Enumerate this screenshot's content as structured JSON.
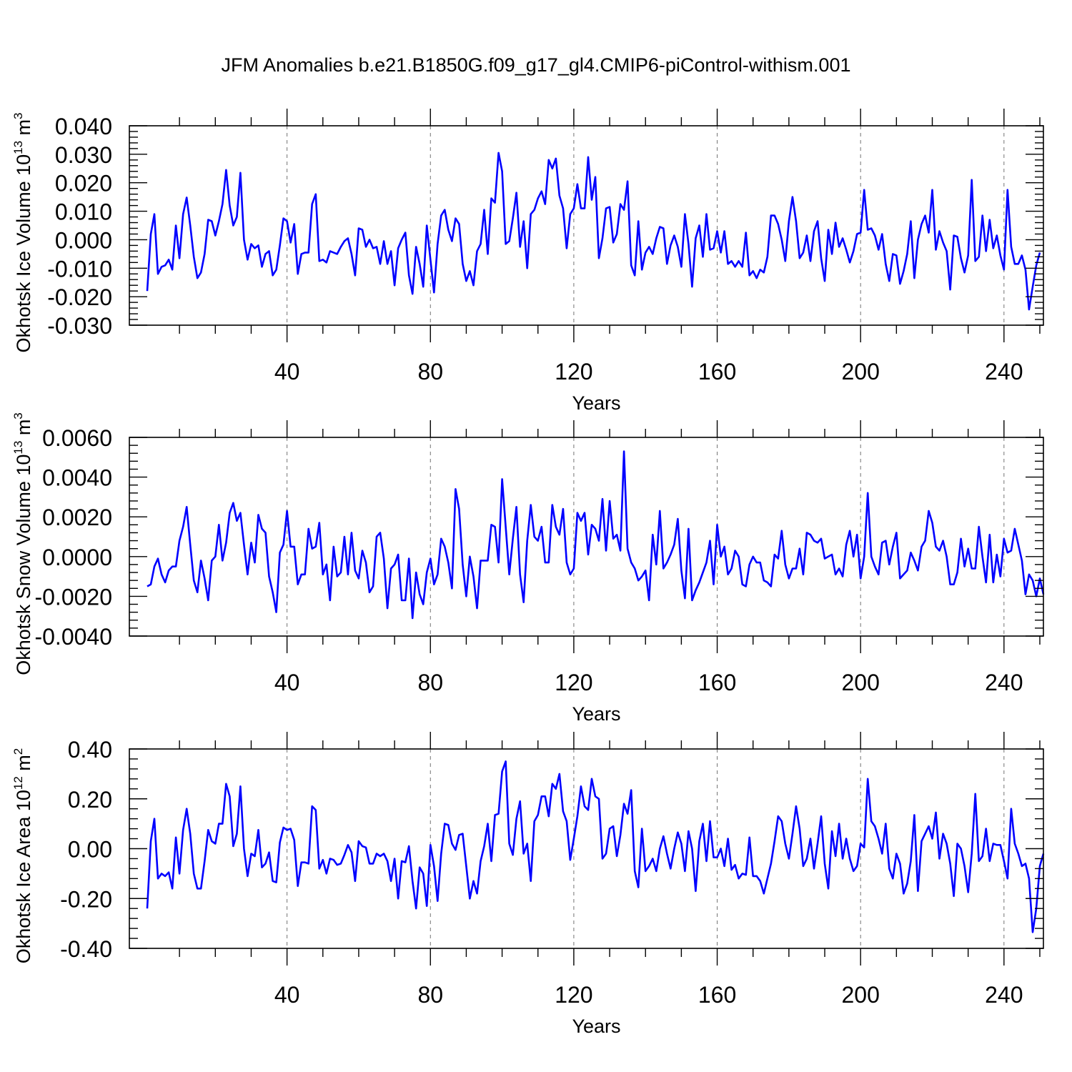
{
  "title": "JFM Anomalies b.e21.B1850G.f09_g17_gl4.CMIP6-piControl-withism.001",
  "chart_data": [
    {
      "type": "line",
      "ylabel": {
        "main": "Okhotsk Ice Volume 10",
        "exp": "13",
        "unit": " m",
        "unit_exp": "3"
      },
      "xlabel": "Years",
      "xlim": [
        1,
        251
      ],
      "ylim": [
        -0.03,
        0.04
      ],
      "xticks": [
        40,
        80,
        120,
        160,
        200,
        240
      ],
      "yticks": [
        -0.03,
        -0.02,
        -0.01,
        0.0,
        0.01,
        0.02,
        0.03,
        0.04
      ],
      "ytick_labels": [
        "-0.030",
        "-0.020",
        "-0.010",
        "0.000",
        "0.010",
        "0.020",
        "0.030",
        "0.040"
      ],
      "grid": "dashed vertical at major x ticks",
      "color": "#0000ff",
      "x_start": 1,
      "values": [
        -0.018,
        0.002,
        0.009,
        -0.012,
        -0.0095,
        -0.009,
        -0.007,
        -0.0105,
        0.005,
        -0.0065,
        0.009,
        0.0148,
        0.005,
        -0.006,
        -0.0135,
        -0.0115,
        -0.005,
        0.007,
        0.0065,
        0.0015,
        0.0065,
        0.0125,
        0.0245,
        0.012,
        0.005,
        0.008,
        0.0235,
        0.0,
        -0.007,
        -0.0015,
        -0.003,
        -0.002,
        -0.0095,
        -0.005,
        -0.004,
        -0.0125,
        -0.0105,
        -0.002,
        0.0075,
        0.0065,
        -0.001,
        0.0055,
        -0.012,
        -0.005,
        -0.0045,
        -0.0045,
        0.0125,
        0.016,
        -0.0075,
        -0.007,
        -0.008,
        -0.004,
        -0.0045,
        -0.005,
        -0.0025,
        -0.0005,
        0.0005,
        -0.005,
        -0.0125,
        0.004,
        0.0035,
        -0.0025,
        0.0,
        -0.003,
        -0.0025,
        -0.0085,
        -0.0005,
        -0.0085,
        -0.004,
        -0.016,
        -0.003,
        0.0,
        0.0025,
        -0.0125,
        -0.019,
        -0.0025,
        -0.0085,
        -0.0165,
        0.005,
        -0.007,
        -0.0185,
        -0.0015,
        0.0085,
        0.0105,
        0.0035,
        -0.0005,
        0.0075,
        0.0055,
        -0.0085,
        -0.0145,
        -0.011,
        -0.016,
        -0.004,
        -0.0015,
        0.0105,
        -0.005,
        0.0145,
        0.013,
        0.0305,
        0.024,
        -0.0015,
        -0.0005,
        0.0075,
        0.0165,
        -0.0025,
        0.0065,
        -0.01,
        0.009,
        0.0105,
        0.0145,
        0.017,
        0.0125,
        0.028,
        0.025,
        0.0285,
        0.0155,
        0.011,
        -0.003,
        0.009,
        0.011,
        0.0195,
        0.011,
        0.011,
        0.029,
        0.014,
        0.022,
        -0.0065,
        0.0005,
        0.011,
        0.0115,
        -0.001,
        0.002,
        0.0125,
        0.0105,
        0.0205,
        -0.009,
        -0.0125,
        0.0065,
        -0.0105,
        -0.0045,
        -0.0025,
        -0.005,
        0.0005,
        0.0045,
        0.004,
        -0.0085,
        -0.002,
        0.0015,
        -0.0025,
        -0.0095,
        0.009,
        -0.0015,
        -0.0165,
        0.0005,
        0.005,
        -0.006,
        0.009,
        -0.0035,
        -0.003,
        0.003,
        -0.0045,
        0.003,
        -0.0085,
        -0.0075,
        -0.0095,
        -0.0075,
        -0.0095,
        0.0025,
        -0.0125,
        -0.011,
        -0.0135,
        -0.0105,
        -0.0115,
        -0.006,
        0.0085,
        0.0085,
        0.0055,
        0.0,
        -0.0075,
        0.0065,
        0.015,
        0.0065,
        -0.0065,
        -0.0045,
        0.0015,
        -0.0075,
        0.003,
        0.0065,
        -0.0065,
        -0.0145,
        0.0035,
        -0.005,
        0.006,
        -0.0025,
        0.0005,
        -0.0035,
        -0.008,
        -0.004,
        0.002,
        0.0025,
        0.0175,
        0.0035,
        0.004,
        0.0015,
        -0.0035,
        0.002,
        -0.0085,
        -0.0145,
        -0.005,
        -0.0055,
        -0.0155,
        -0.011,
        -0.005,
        0.0065,
        -0.0135,
        0.0,
        0.0055,
        0.0085,
        0.0025,
        0.0175,
        -0.0035,
        0.003,
        -0.001,
        -0.004,
        -0.0175,
        0.0015,
        0.001,
        -0.0065,
        -0.0115,
        -0.0055,
        0.021,
        -0.0075,
        -0.006,
        0.0085,
        -0.004,
        0.007,
        -0.003,
        0.0015,
        -0.0055,
        -0.0105,
        0.0175,
        -0.0025,
        -0.0085,
        -0.0085,
        -0.0055,
        -0.0105,
        -0.0245,
        -0.0165,
        -0.009,
        -0.0045
      ]
    },
    {
      "type": "line",
      "ylabel": {
        "main": "Okhotsk Snow Volume 10",
        "exp": "13",
        "unit": " m",
        "unit_exp": "3"
      },
      "xlabel": "Years",
      "xlim": [
        1,
        251
      ],
      "ylim": [
        -0.004,
        0.006
      ],
      "xticks": [
        40,
        80,
        120,
        160,
        200,
        240
      ],
      "yticks": [
        -0.004,
        -0.002,
        0.0,
        0.002,
        0.004,
        0.006
      ],
      "ytick_labels": [
        "-0.0040",
        "-0.0020",
        "0.0000",
        "0.0020",
        "0.0040",
        "0.0060"
      ],
      "grid": "dashed vertical at major x ticks",
      "color": "#0000ff",
      "x_start": 1,
      "values": [
        -0.0015,
        -0.0014,
        -0.0005,
        -0.0001,
        -0.0009,
        -0.0013,
        -0.0007,
        -0.0005,
        -0.0005,
        0.0008,
        0.0015,
        0.0025,
        0.0006,
        -0.0012,
        -0.0018,
        -0.0002,
        -0.0011,
        -0.0022,
        -0.0002,
        0.0,
        0.0016,
        -0.0002,
        0.0007,
        0.0022,
        0.0027,
        0.0018,
        0.0022,
        0.0006,
        -0.0009,
        0.0007,
        -0.0003,
        0.0021,
        0.0014,
        0.0012,
        -0.001,
        -0.0018,
        -0.0028,
        0.0002,
        0.0006,
        0.0023,
        0.0005,
        0.0005,
        -0.0014,
        -0.0009,
        -0.0009,
        0.0014,
        0.0004,
        0.0005,
        0.0017,
        -0.0009,
        -0.0004,
        -0.0022,
        0.0005,
        -0.001,
        -0.0008,
        0.001,
        -0.0009,
        0.0012,
        -0.0007,
        -0.0011,
        0.0003,
        -0.0003,
        -0.0018,
        -0.0015,
        0.001,
        0.0012,
        -0.0001,
        -0.0026,
        -0.0006,
        -0.0004,
        0.0001,
        -0.0022,
        -0.0022,
        -0.0001,
        -0.0031,
        -0.0008,
        -0.0019,
        -0.0024,
        -0.0008,
        -0.0001,
        -0.0014,
        -0.0009,
        0.0009,
        0.0005,
        -0.0003,
        -0.0016,
        0.0034,
        0.0024,
        -0.0004,
        -0.002,
        0.0,
        -0.001,
        -0.0026,
        -0.0002,
        -0.0002,
        -0.0002,
        0.0016,
        0.0015,
        -0.0003,
        0.0039,
        0.0015,
        -0.0009,
        0.0009,
        0.0025,
        -0.0009,
        -0.0023,
        0.0008,
        0.0026,
        0.001,
        0.0008,
        0.0015,
        -0.0003,
        -0.0003,
        0.0026,
        0.0015,
        0.0011,
        0.0024,
        -0.0003,
        -0.0009,
        -0.0006,
        0.0022,
        0.0018,
        0.0022,
        0.0001,
        0.0016,
        0.0014,
        0.0008,
        0.0029,
        0.0003,
        0.0028,
        0.0009,
        0.0011,
        0.0003,
        0.0053,
        0.0004,
        -0.0003,
        -0.0006,
        -0.0012,
        -0.001,
        -0.0007,
        -0.0022,
        0.0011,
        -0.0004,
        0.0023,
        -0.0006,
        -0.0003,
        0.0001,
        0.0006,
        0.0019,
        -0.0007,
        -0.0021,
        0.0014,
        -0.0022,
        -0.0017,
        -0.0013,
        -0.0008,
        -0.0003,
        0.0008,
        -0.0014,
        0.0016,
        0.0,
        0.0005,
        -0.0009,
        -0.0006,
        0.0003,
        0.0,
        -0.0014,
        -0.0015,
        -0.0004,
        0.0,
        -0.0003,
        -0.0003,
        -0.0012,
        -0.0013,
        -0.0015,
        0.0001,
        -0.0001,
        0.0013,
        -0.0004,
        -0.0011,
        -0.0006,
        -0.0006,
        0.0004,
        -0.0009,
        0.0012,
        0.0011,
        0.0008,
        0.0007,
        0.0009,
        -0.0001,
        0.0,
        0.0001,
        -0.0009,
        -0.0006,
        -0.001,
        0.0006,
        0.0013,
        0.0,
        0.0011,
        -0.0011,
        0.0,
        0.0032,
        0.0,
        -0.0005,
        -0.0009,
        0.0007,
        0.0008,
        -0.0004,
        0.0005,
        0.0012,
        -0.0011,
        -0.0009,
        -0.0007,
        0.0002,
        -0.0002,
        -0.0007,
        0.0005,
        0.0008,
        0.0023,
        0.0017,
        0.0005,
        0.0003,
        0.0008,
        0.0,
        -0.0014,
        -0.0014,
        -0.0008,
        0.0009,
        -0.0005,
        0.0004,
        -0.0006,
        -0.0006,
        0.0015,
        0.0,
        -0.0013,
        0.0011,
        -0.0013,
        0.0001,
        -0.001,
        0.0009,
        0.0002,
        0.0003,
        0.0014,
        0.0006,
        -0.0002,
        -0.0019,
        -0.0009,
        -0.0012,
        -0.002,
        -0.0011,
        -0.0019
      ]
    },
    {
      "type": "line",
      "ylabel": {
        "main": "Okhotsk Ice Area 10",
        "exp": "12",
        "unit": " m",
        "unit_exp": "2"
      },
      "xlabel": "Years",
      "xlim": [
        1,
        251
      ],
      "ylim": [
        -0.4,
        0.4
      ],
      "xticks": [
        40,
        80,
        120,
        160,
        200,
        240
      ],
      "yticks": [
        -0.4,
        -0.2,
        0.0,
        0.2,
        0.4
      ],
      "ytick_labels": [
        "-0.40",
        "-0.20",
        "0.00",
        "0.20",
        "0.40"
      ],
      "grid": "dashed vertical at major x ticks",
      "color": "#0000ff",
      "x_start": 1,
      "values": [
        -0.24,
        0.03,
        0.12,
        -0.12,
        -0.1,
        -0.11,
        -0.095,
        -0.16,
        0.045,
        -0.1,
        0.075,
        0.16,
        0.06,
        -0.1,
        -0.16,
        -0.16,
        -0.05,
        0.075,
        0.03,
        0.02,
        0.1,
        0.1,
        0.26,
        0.21,
        0.01,
        0.06,
        0.25,
        0.0,
        -0.11,
        -0.02,
        -0.03,
        0.075,
        -0.075,
        -0.06,
        -0.015,
        -0.13,
        -0.135,
        0.025,
        0.085,
        0.075,
        0.08,
        0.035,
        -0.15,
        -0.055,
        -0.055,
        -0.06,
        0.17,
        0.155,
        -0.08,
        -0.045,
        -0.1,
        -0.04,
        -0.045,
        -0.065,
        -0.06,
        -0.025,
        0.015,
        -0.015,
        -0.13,
        0.03,
        0.01,
        0.005,
        -0.06,
        -0.06,
        -0.02,
        -0.03,
        -0.02,
        -0.05,
        -0.13,
        -0.04,
        -0.2,
        -0.05,
        -0.055,
        0.01,
        -0.13,
        -0.24,
        -0.075,
        -0.1,
        -0.23,
        0.015,
        -0.07,
        -0.21,
        -0.02,
        0.1,
        0.095,
        0.02,
        -0.005,
        0.055,
        0.06,
        -0.07,
        -0.2,
        -0.13,
        -0.18,
        -0.05,
        0.01,
        0.1,
        -0.05,
        0.135,
        0.14,
        0.31,
        0.35,
        0.02,
        -0.025,
        0.12,
        0.19,
        -0.02,
        0.02,
        -0.13,
        0.11,
        0.135,
        0.21,
        0.21,
        0.13,
        0.26,
        0.24,
        0.3,
        0.15,
        0.11,
        -0.045,
        0.04,
        0.13,
        0.25,
        0.17,
        0.155,
        0.28,
        0.21,
        0.2,
        -0.04,
        -0.02,
        0.08,
        0.09,
        -0.03,
        0.055,
        0.18,
        0.14,
        0.235,
        -0.09,
        -0.155,
        0.08,
        -0.09,
        -0.07,
        -0.04,
        -0.09,
        0.0,
        0.05,
        -0.02,
        -0.08,
        0.0,
        0.065,
        0.02,
        -0.09,
        0.07,
        0.0,
        -0.17,
        0.03,
        0.1,
        -0.05,
        0.11,
        -0.035,
        -0.035,
        0.0,
        -0.07,
        0.04,
        -0.085,
        -0.065,
        -0.12,
        -0.1,
        -0.105,
        0.045,
        -0.11,
        -0.11,
        -0.13,
        -0.18,
        -0.12,
        -0.06,
        0.03,
        0.13,
        0.11,
        0.02,
        -0.04,
        0.06,
        0.17,
        0.08,
        -0.07,
        -0.04,
        0.04,
        -0.08,
        0.02,
        0.13,
        -0.06,
        -0.16,
        0.07,
        -0.03,
        0.1,
        -0.04,
        0.04,
        -0.04,
        -0.09,
        -0.07,
        0.02,
        0.005,
        0.28,
        0.11,
        0.09,
        0.04,
        -0.02,
        0.1,
        -0.08,
        -0.12,
        -0.02,
        -0.06,
        -0.18,
        -0.14,
        -0.05,
        0.135,
        -0.17,
        0.03,
        0.06,
        0.09,
        0.04,
        0.145,
        -0.04,
        0.06,
        0.02,
        -0.06,
        -0.19,
        0.02,
        0.0,
        -0.07,
        -0.175,
        -0.02,
        0.22,
        -0.05,
        -0.03,
        0.08,
        -0.05,
        0.02,
        0.015,
        0.015,
        -0.05,
        -0.12,
        0.16,
        0.02,
        -0.02,
        -0.07,
        -0.06,
        -0.12,
        -0.335,
        -0.24,
        -0.07,
        -0.02
      ]
    }
  ]
}
